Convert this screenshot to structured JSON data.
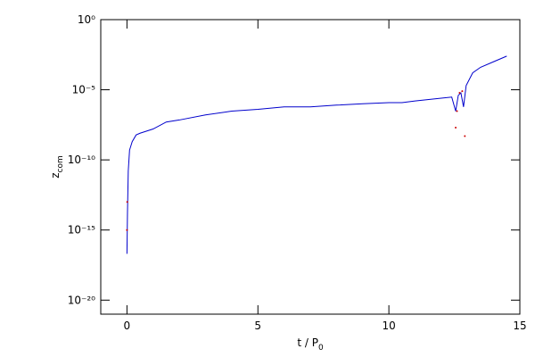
{
  "chart_data": {
    "type": "line",
    "log_y": true,
    "xlabel": "t / P",
    "xlabel_sub": "0",
    "ylabel": "z",
    "ylabel_sub": "com",
    "xlim": [
      -1,
      15
    ],
    "xticks": [
      0,
      5,
      10,
      15
    ],
    "ylim": [
      1e-21,
      1
    ],
    "yticks": [
      {
        "value": 1,
        "label": "10⁰"
      },
      {
        "value": 1e-05,
        "label": "10⁻⁵"
      },
      {
        "value": 1e-10,
        "label": "10⁻¹⁰"
      },
      {
        "value": 1e-15,
        "label": "10⁻¹⁵"
      },
      {
        "value": 1e-20,
        "label": "10⁻²⁰"
      }
    ],
    "series": [
      {
        "color": "#0000cc",
        "mode": "line",
        "x": [
          0.0,
          0.02,
          0.05,
          0.1,
          0.2,
          0.35,
          0.5,
          1.0,
          1.5,
          2,
          3,
          4,
          5,
          6,
          7,
          8,
          9,
          10,
          10.5,
          11,
          12,
          12.4,
          12.55,
          12.65,
          12.75,
          12.85,
          12.95,
          13.2,
          13.5,
          14,
          14.5
        ],
        "values": [
          2e-17,
          1.6e-14,
          1.6e-11,
          5e-10,
          2e-09,
          6e-09,
          8e-09,
          1.6e-08,
          5e-08,
          7e-08,
          1.6e-07,
          3e-07,
          4e-07,
          6e-07,
          6e-07,
          8e-07,
          1e-06,
          1.2e-06,
          1.2e-06,
          1.6e-06,
          2.5e-06,
          3e-06,
          3e-07,
          4e-06,
          6e-06,
          6e-07,
          2e-05,
          0.00016,
          0.0004,
          0.001,
          0.0025
        ]
      },
      {
        "color": "#cc0000",
        "mode": "markers",
        "x": [
          0.0,
          0.01,
          12.55,
          12.6,
          12.7,
          12.8,
          12.9
        ],
        "values": [
          1e-15,
          1e-13,
          2e-08,
          3e-07,
          6e-06,
          8e-06,
          5e-09
        ]
      }
    ]
  }
}
